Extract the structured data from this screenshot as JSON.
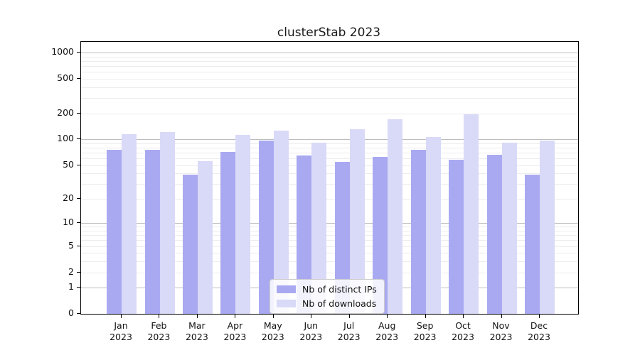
{
  "title": "clusterStab 2023",
  "chart_data": {
    "type": "bar",
    "title": "clusterStab 2023",
    "categories": [
      "Jan 2023",
      "Feb 2023",
      "Mar 2023",
      "Apr 2023",
      "May 2023",
      "Jun 2023",
      "Jul 2023",
      "Aug 2023",
      "Sep 2023",
      "Oct 2023",
      "Nov 2023",
      "Dec 2023"
    ],
    "series": [
      {
        "name": "Nb of distinct IPs",
        "color": "#a9a9f2",
        "values": [
          75,
          75,
          39,
          71,
          96,
          65,
          55,
          63,
          75,
          58,
          66,
          39
        ]
      },
      {
        "name": "Nb of downloads",
        "color": "#d9d9f8",
        "values": [
          116,
          121,
          56,
          113,
          127,
          91,
          130,
          171,
          106,
          194,
          92,
          97
        ]
      }
    ],
    "xlabel": "",
    "ylabel": "",
    "yscale": "log1p",
    "ylim": [
      0,
      1330
    ],
    "yticks": [
      0,
      1,
      2,
      5,
      10,
      20,
      50,
      100,
      200,
      500,
      1000
    ],
    "grid_major": [
      1,
      10,
      100,
      1000
    ],
    "grid_minor": [
      2,
      3,
      4,
      6,
      7,
      8,
      9,
      20,
      30,
      40,
      60,
      70,
      80,
      90,
      200,
      300,
      400,
      600,
      700,
      800,
      900,
      2,
      5,
      20,
      50,
      200,
      500
    ],
    "grid": true,
    "legend_position": "lower center"
  },
  "colors": {
    "grid_major": "#bdbdbd",
    "grid_minor": "#ececec",
    "spine": "#000000",
    "text": "#111111",
    "background": "#ffffff"
  }
}
